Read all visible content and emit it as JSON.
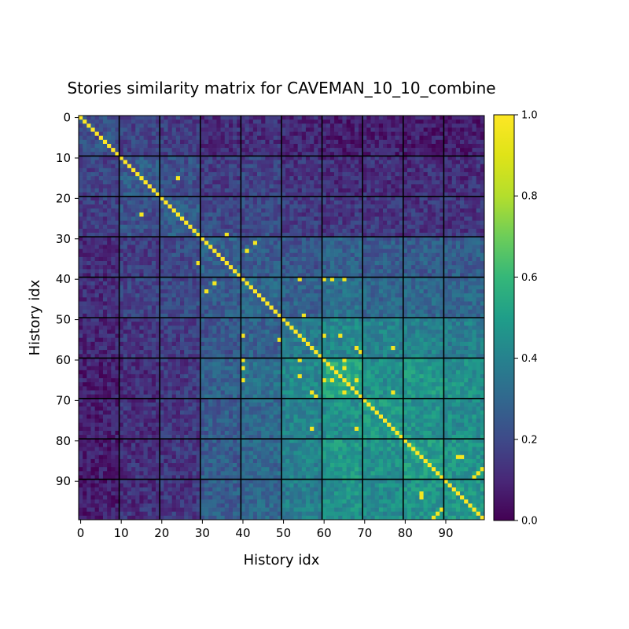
{
  "chart_data": {
    "type": "heatmap",
    "title": "Stories similarity matrix for CAVEMAN_10_10_combine",
    "xlabel": "History idx",
    "ylabel": "History idx",
    "n": 100,
    "x_ticks": [
      0,
      10,
      20,
      30,
      40,
      50,
      60,
      70,
      80,
      90
    ],
    "y_ticks": [
      0,
      10,
      20,
      30,
      40,
      50,
      60,
      70,
      80,
      90
    ],
    "xlim": [
      0,
      99
    ],
    "ylim": [
      0,
      99
    ],
    "y_inverted": true,
    "block_size": 10,
    "block_boundaries": [
      9.5,
      19.5,
      29.5,
      39.5,
      49.5,
      59.5,
      69.5,
      79.5,
      89.5
    ],
    "colormap": "viridis",
    "colorbar": {
      "min": 0.0,
      "max": 1.0,
      "ticks": [
        "0.0",
        "0.2",
        "0.4",
        "0.6",
        "0.8",
        "1.0"
      ]
    },
    "diagonal_value": 1.0,
    "approx_block_means": [
      [
        0.22,
        0.18,
        0.16,
        0.12,
        0.12,
        0.1,
        0.08,
        0.08,
        0.07,
        0.07
      ],
      [
        0.18,
        0.26,
        0.22,
        0.16,
        0.18,
        0.14,
        0.12,
        0.12,
        0.12,
        0.12
      ],
      [
        0.16,
        0.22,
        0.26,
        0.2,
        0.2,
        0.16,
        0.15,
        0.15,
        0.14,
        0.14
      ],
      [
        0.12,
        0.16,
        0.2,
        0.28,
        0.26,
        0.24,
        0.28,
        0.26,
        0.26,
        0.26
      ],
      [
        0.12,
        0.18,
        0.2,
        0.26,
        0.3,
        0.28,
        0.33,
        0.3,
        0.3,
        0.3
      ],
      [
        0.1,
        0.14,
        0.16,
        0.24,
        0.28,
        0.36,
        0.42,
        0.4,
        0.4,
        0.38
      ],
      [
        0.08,
        0.12,
        0.15,
        0.28,
        0.33,
        0.42,
        0.55,
        0.45,
        0.48,
        0.45
      ],
      [
        0.08,
        0.12,
        0.15,
        0.26,
        0.3,
        0.4,
        0.45,
        0.48,
        0.46,
        0.44
      ],
      [
        0.07,
        0.12,
        0.14,
        0.26,
        0.3,
        0.4,
        0.48,
        0.46,
        0.5,
        0.46
      ],
      [
        0.07,
        0.12,
        0.14,
        0.26,
        0.3,
        0.38,
        0.45,
        0.44,
        0.46,
        0.48
      ]
    ],
    "high_similarity_pairs": [
      [
        15,
        24
      ],
      [
        29,
        36
      ],
      [
        31,
        43
      ],
      [
        33,
        41
      ],
      [
        40,
        54
      ],
      [
        40,
        60
      ],
      [
        40,
        62
      ],
      [
        40,
        65
      ],
      [
        54,
        64
      ],
      [
        54,
        60
      ],
      [
        57,
        68
      ],
      [
        58,
        69
      ],
      [
        57,
        77
      ],
      [
        60,
        65
      ],
      [
        62,
        65
      ],
      [
        65,
        68
      ],
      [
        68,
        77
      ],
      [
        84,
        94
      ],
      [
        84,
        93
      ],
      [
        87,
        99
      ],
      [
        88,
        98
      ],
      [
        89,
        97
      ],
      [
        49,
        55
      ]
    ]
  }
}
